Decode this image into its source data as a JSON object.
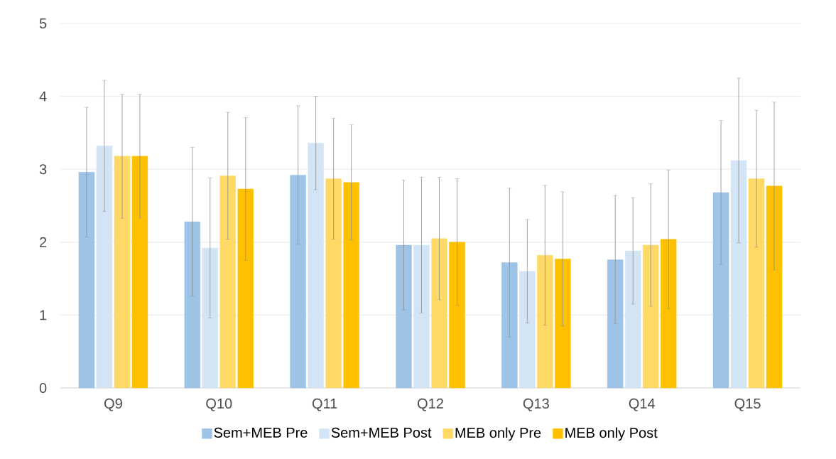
{
  "chart_data": {
    "type": "bar",
    "categories": [
      "Q9",
      "Q10",
      "Q11",
      "Q12",
      "Q13",
      "Q14",
      "Q15"
    ],
    "series": [
      {
        "name": "Sem+MEB Pre",
        "color": "#9dc3e6",
        "values": [
          2.96,
          2.28,
          2.92,
          1.96,
          1.72,
          1.76,
          2.68
        ],
        "errors": [
          0.89,
          1.02,
          0.95,
          0.89,
          1.02,
          0.88,
          0.99
        ]
      },
      {
        "name": "Sem+MEB Post",
        "color": "#d3e5f5",
        "values": [
          3.32,
          1.92,
          3.36,
          1.96,
          1.6,
          1.88,
          3.12
        ],
        "errors": [
          0.9,
          0.96,
          0.64,
          0.93,
          0.71,
          0.73,
          1.13
        ]
      },
      {
        "name": "MEB only Pre",
        "color": "#ffd966",
        "values": [
          3.18,
          2.91,
          2.87,
          2.05,
          1.82,
          1.96,
          2.87
        ],
        "errors": [
          0.85,
          0.87,
          0.83,
          0.84,
          0.96,
          0.84,
          0.94
        ]
      },
      {
        "name": "MEB only Post",
        "color": "#ffc000",
        "values": [
          3.18,
          2.73,
          2.82,
          2.0,
          1.77,
          2.04,
          2.77
        ],
        "errors": [
          0.85,
          0.98,
          0.79,
          0.87,
          0.92,
          0.95,
          1.15
        ]
      }
    ],
    "ylim": [
      0,
      5
    ],
    "yticks": [
      0,
      1,
      2,
      3,
      4,
      5
    ],
    "grid": "y",
    "legend": "bottom"
  }
}
